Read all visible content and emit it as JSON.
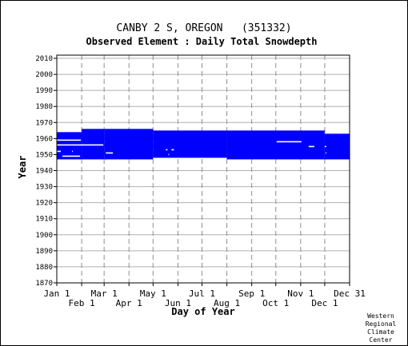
{
  "chart_data": {
    "type": "bar",
    "title": "CANBY 2 S, OREGON   (351332)",
    "subtitle": "Observed Element : Daily Total Snowdepth",
    "xlabel": "Day of Year",
    "ylabel": "Year",
    "ylim": [
      1870,
      2012
    ],
    "xlim": [
      1,
      366
    ],
    "y_ticks": [
      1870,
      1880,
      1890,
      1900,
      1910,
      1920,
      1930,
      1940,
      1950,
      1960,
      1970,
      1980,
      1990,
      2000,
      2010
    ],
    "x_ticks": [
      {
        "label": "Jan 1",
        "day": 1,
        "row": 0
      },
      {
        "label": "Feb 1",
        "day": 32,
        "row": 1
      },
      {
        "label": "Mar 1",
        "day": 60,
        "row": 0
      },
      {
        "label": "Apr 1",
        "day": 91,
        "row": 1
      },
      {
        "label": "May 1",
        "day": 121,
        "row": 0
      },
      {
        "label": "Jun 1",
        "day": 152,
        "row": 1
      },
      {
        "label": "Jul 1",
        "day": 182,
        "row": 0
      },
      {
        "label": "Aug 1",
        "day": 213,
        "row": 1
      },
      {
        "label": "Sep 1",
        "day": 244,
        "row": 0
      },
      {
        "label": "Oct 1",
        "day": 274,
        "row": 1
      },
      {
        "label": "Nov 1",
        "day": 305,
        "row": 0
      },
      {
        "label": "Dec 1",
        "day": 335,
        "row": 1
      },
      {
        "label": "Dec 31",
        "day": 366,
        "row": 0
      }
    ],
    "grid": true,
    "series": [
      {
        "color": "#0000ff",
        "segments": [
          {
            "day_start": 1,
            "day_end": 32,
            "year_start": 1947,
            "year_end": 1964
          },
          {
            "day_start": 32,
            "day_end": 60,
            "year_start": 1947,
            "year_end": 1966
          },
          {
            "day_start": 60,
            "day_end": 121,
            "year_start": 1947,
            "year_end": 1966
          },
          {
            "day_start": 121,
            "day_end": 213,
            "year_start": 1948,
            "year_end": 1965
          },
          {
            "day_start": 213,
            "day_end": 335,
            "year_start": 1947,
            "year_end": 1965
          },
          {
            "day_start": 335,
            "day_end": 366,
            "year_start": 1947,
            "year_end": 1963
          }
        ]
      }
    ],
    "gaps_color": "#ffffff",
    "gaps": [
      {
        "day_start": 1,
        "day_end": 31,
        "year": 1959
      },
      {
        "day_start": 1,
        "day_end": 59,
        "year": 1956
      },
      {
        "day_start": 1,
        "day_end": 6,
        "year": 1952
      },
      {
        "day_start": 20,
        "day_end": 21,
        "year": 1952
      },
      {
        "day_start": 8,
        "day_end": 30,
        "year": 1949
      },
      {
        "day_start": 62,
        "day_end": 71,
        "year": 1951
      },
      {
        "day_start": 137,
        "day_end": 139,
        "year": 1953
      },
      {
        "day_start": 144,
        "day_end": 147,
        "year": 1953
      },
      {
        "day_start": 140,
        "day_end": 141,
        "year": 1950
      },
      {
        "day_start": 275,
        "day_end": 306,
        "year": 1958
      },
      {
        "day_start": 315,
        "day_end": 322,
        "year": 1955
      },
      {
        "day_start": 335,
        "day_end": 337,
        "year": 1955
      },
      {
        "day_start": 336,
        "day_end": 337,
        "year": 1951
      }
    ]
  },
  "credit": [
    "Western",
    "Regional",
    "Climate",
    "Center"
  ]
}
